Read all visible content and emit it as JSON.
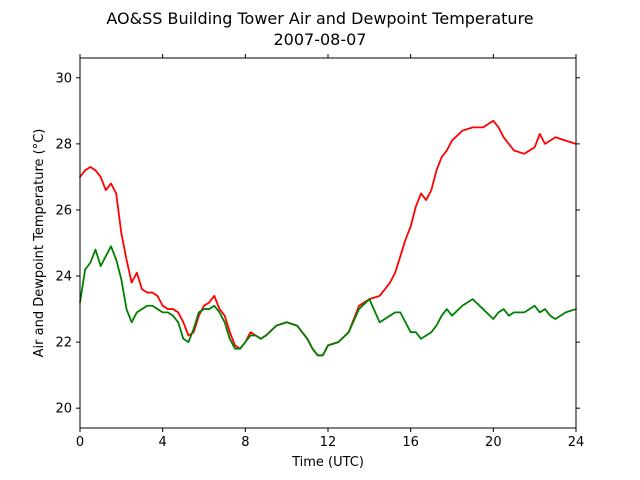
{
  "chart_data": {
    "type": "line",
    "title": "AO&SS Building Tower Air and Dewpoint Temperature",
    "subtitle": "2007-08-07",
    "xlabel": "Time (UTC)",
    "ylabel": "Air and Dewpoint Temperature (°C)",
    "xlim": [
      0,
      24
    ],
    "ylim": [
      19.4,
      30.6
    ],
    "x_ticks": [
      0,
      4,
      8,
      12,
      16,
      20,
      24
    ],
    "y_ticks": [
      20,
      22,
      24,
      26,
      28,
      30
    ],
    "x_tick_labels": [
      "0",
      "4",
      "8",
      "12",
      "16",
      "20",
      "24"
    ],
    "y_tick_labels": [
      "20",
      "22",
      "24",
      "26",
      "28",
      "30"
    ],
    "grid": false,
    "series": [
      {
        "color": "#ff0000",
        "x": [
          0,
          0.25,
          0.5,
          0.75,
          1.0,
          1.25,
          1.5,
          1.75,
          2.0,
          2.25,
          2.5,
          2.75,
          3.0,
          3.25,
          3.5,
          3.75,
          4.0,
          4.25,
          4.5,
          4.75,
          5.0,
          5.25,
          5.5,
          5.75,
          6.0,
          6.25,
          6.5,
          6.75,
          7.0,
          7.25,
          7.5,
          7.75,
          8.0,
          8.25,
          8.5,
          8.75,
          9.0,
          9.5,
          10.0,
          10.5,
          11.0,
          11.25,
          11.5,
          11.75,
          12.0,
          12.5,
          13.0,
          13.5,
          14.0,
          14.5,
          15.0,
          15.25,
          15.5,
          15.75,
          16.0,
          16.25,
          16.5,
          16.75,
          17.0,
          17.25,
          17.5,
          17.75,
          18.0,
          18.5,
          19.0,
          19.5,
          20.0,
          20.25,
          20.5,
          20.75,
          21.0,
          21.5,
          22.0,
          22.25,
          22.5,
          22.75,
          23.0,
          23.5,
          24.0
        ],
        "y": [
          27.0,
          27.2,
          27.3,
          27.2,
          27.0,
          26.6,
          26.8,
          26.5,
          25.3,
          24.5,
          23.8,
          24.1,
          23.6,
          23.5,
          23.5,
          23.4,
          23.1,
          23.0,
          23.0,
          22.9,
          22.6,
          22.2,
          22.3,
          22.8,
          23.1,
          23.2,
          23.4,
          23.0,
          22.8,
          22.3,
          21.9,
          21.8,
          22.0,
          22.3,
          22.2,
          22.1,
          22.2,
          22.5,
          22.6,
          22.5,
          22.1,
          21.8,
          21.6,
          21.6,
          21.9,
          22.0,
          22.3,
          23.1,
          23.3,
          23.4,
          23.8,
          24.1,
          24.6,
          25.1,
          25.5,
          26.1,
          26.5,
          26.3,
          26.6,
          27.2,
          27.6,
          27.8,
          28.1,
          28.4,
          28.5,
          28.5,
          28.7,
          28.5,
          28.2,
          28.0,
          27.8,
          27.7,
          27.9,
          28.3,
          28.0,
          28.1,
          28.2,
          28.1,
          28.0
        ]
      },
      {
        "color": "#008000",
        "x": [
          0,
          0.25,
          0.5,
          0.75,
          1.0,
          1.25,
          1.5,
          1.75,
          2.0,
          2.25,
          2.5,
          2.75,
          3.0,
          3.25,
          3.5,
          3.75,
          4.0,
          4.25,
          4.5,
          4.75,
          5.0,
          5.25,
          5.5,
          5.75,
          6.0,
          6.25,
          6.5,
          6.75,
          7.0,
          7.25,
          7.5,
          7.75,
          8.0,
          8.25,
          8.5,
          8.75,
          9.0,
          9.5,
          10.0,
          10.5,
          11.0,
          11.25,
          11.5,
          11.75,
          12.0,
          12.5,
          13.0,
          13.5,
          14.0,
          14.5,
          15.0,
          15.25,
          15.5,
          15.75,
          16.0,
          16.25,
          16.5,
          16.75,
          17.0,
          17.25,
          17.5,
          17.75,
          18.0,
          18.5,
          19.0,
          19.5,
          20.0,
          20.25,
          20.5,
          20.75,
          21.0,
          21.5,
          22.0,
          22.25,
          22.5,
          22.75,
          23.0,
          23.5,
          24.0
        ],
        "y": [
          23.2,
          24.2,
          24.4,
          24.8,
          24.3,
          24.6,
          24.9,
          24.5,
          23.9,
          23.0,
          22.6,
          22.9,
          23.0,
          23.1,
          23.1,
          23.0,
          22.9,
          22.9,
          22.8,
          22.6,
          22.1,
          22.0,
          22.4,
          22.9,
          23.0,
          23.0,
          23.1,
          22.9,
          22.6,
          22.1,
          21.8,
          21.8,
          22.0,
          22.2,
          22.2,
          22.1,
          22.2,
          22.5,
          22.6,
          22.5,
          22.1,
          21.8,
          21.6,
          21.6,
          21.9,
          22.0,
          22.3,
          23.0,
          23.3,
          22.6,
          22.8,
          22.9,
          22.9,
          22.6,
          22.3,
          22.3,
          22.1,
          22.2,
          22.3,
          22.5,
          22.8,
          23.0,
          22.8,
          23.1,
          23.3,
          23.0,
          22.7,
          22.9,
          23.0,
          22.8,
          22.9,
          22.9,
          23.1,
          22.9,
          23.0,
          22.8,
          22.7,
          22.9,
          23.0
        ]
      }
    ]
  }
}
